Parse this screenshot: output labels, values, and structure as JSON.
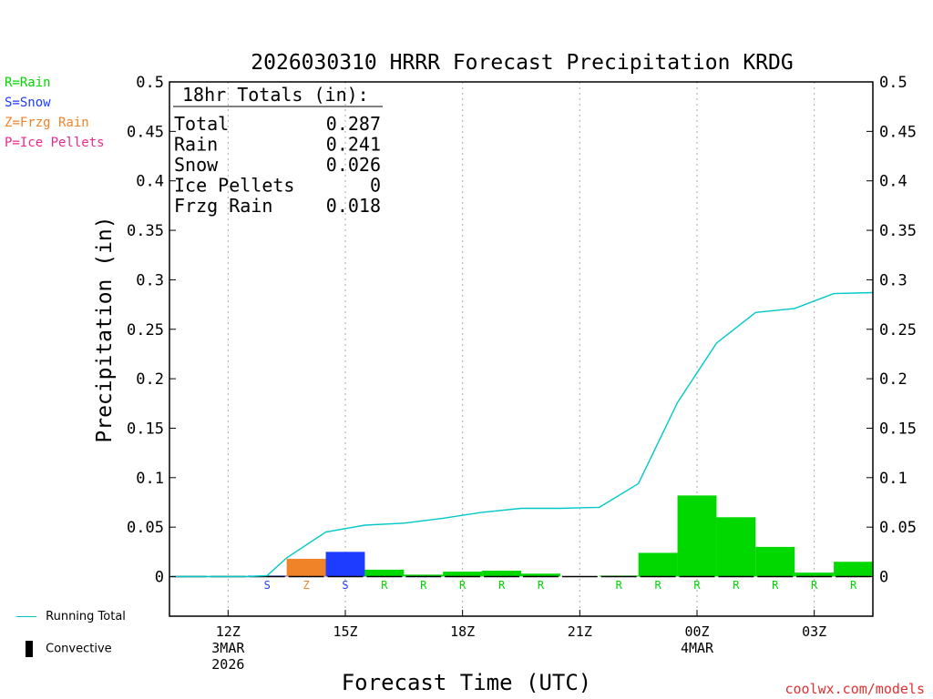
{
  "chart_data": {
    "type": "bar",
    "title": "2026030310 HRRR Forecast Precipitation KRDG",
    "xlabel": "Forecast Time (UTC)",
    "ylabel": "Precipitation (in)",
    "ylim": [
      -0.04,
      0.5
    ],
    "yticks": [
      "0",
      "0.05",
      "0.1",
      "0.15",
      "0.2",
      "0.25",
      "0.3",
      "0.35",
      "0.4",
      "0.45",
      "0.5"
    ],
    "xlim": [
      10.5,
      28.5
    ],
    "xticks": [
      {
        "x": 12,
        "lines": [
          "12Z",
          "3MAR",
          "2026"
        ]
      },
      {
        "x": 15,
        "lines": [
          "15Z"
        ]
      },
      {
        "x": 18,
        "lines": [
          "18Z"
        ]
      },
      {
        "x": 21,
        "lines": [
          "21Z"
        ]
      },
      {
        "x": 24,
        "lines": [
          "00Z",
          "4MAR"
        ]
      },
      {
        "x": 27,
        "lines": [
          "03Z"
        ]
      }
    ],
    "bars": [
      {
        "hour": 11,
        "value": 0,
        "type": ""
      },
      {
        "hour": 12,
        "value": 0,
        "type": ""
      },
      {
        "hour": 13,
        "value": 0.001,
        "type": "S"
      },
      {
        "hour": 14,
        "value": 0.018,
        "type": "Z"
      },
      {
        "hour": 15,
        "value": 0.025,
        "type": "S"
      },
      {
        "hour": 16,
        "value": 0.007,
        "type": "R"
      },
      {
        "hour": 17,
        "value": 0.002,
        "type": "R"
      },
      {
        "hour": 18,
        "value": 0.005,
        "type": "R"
      },
      {
        "hour": 19,
        "value": 0.006,
        "type": "R"
      },
      {
        "hour": 20,
        "value": 0.003,
        "type": "R"
      },
      {
        "hour": 21,
        "value": 0,
        "type": ""
      },
      {
        "hour": 22,
        "value": 0.001,
        "type": "R"
      },
      {
        "hour": 23,
        "value": 0.024,
        "type": "R"
      },
      {
        "hour": 24,
        "value": 0.082,
        "type": "R"
      },
      {
        "hour": 25,
        "value": 0.06,
        "type": "R"
      },
      {
        "hour": 26,
        "value": 0.03,
        "type": "R"
      },
      {
        "hour": 27,
        "value": 0.004,
        "type": "R"
      },
      {
        "hour": 28,
        "value": 0.015,
        "type": "R"
      }
    ],
    "running_total": {
      "name": "Running Total",
      "x": [
        10.5,
        11.5,
        12.5,
        13,
        13.5,
        14.5,
        15.5,
        16.5,
        17.5,
        18.5,
        19.5,
        20.5,
        21.5,
        22.5,
        23.5,
        24.5,
        25.5,
        26.5,
        27.5,
        28.5
      ],
      "y": [
        0,
        0,
        0,
        0.001,
        0.019,
        0.045,
        0.052,
        0.054,
        0.059,
        0.065,
        0.069,
        0.069,
        0.07,
        0.094,
        0.176,
        0.236,
        0.267,
        0.271,
        0.286,
        0.287
      ]
    },
    "colors": {
      "R": "#00d800",
      "S": "#1e3cff",
      "Z": "#f08228",
      "P": "#f0288c",
      "line": "#00c8c8"
    },
    "type_legend": [
      {
        "code": "R",
        "label": "R=Rain"
      },
      {
        "code": "S",
        "label": "S=Snow"
      },
      {
        "code": "Z",
        "label": "Z=Frzg Rain"
      },
      {
        "code": "P",
        "label": "P=Ice Pellets"
      }
    ],
    "totals_box": {
      "title": "18hr Totals (in):",
      "rows": [
        {
          "label": "Total",
          "value": "0.287"
        },
        {
          "label": "Rain",
          "value": "0.241"
        },
        {
          "label": "Snow",
          "value": "0.026"
        },
        {
          "label": "Ice Pellets",
          "value": "0"
        },
        {
          "label": "Frzg Rain",
          "value": "0.018"
        }
      ]
    },
    "bottom_legend": {
      "running_total": "Running Total",
      "convective": "Convective"
    },
    "credit": "coolwx.com/models"
  }
}
